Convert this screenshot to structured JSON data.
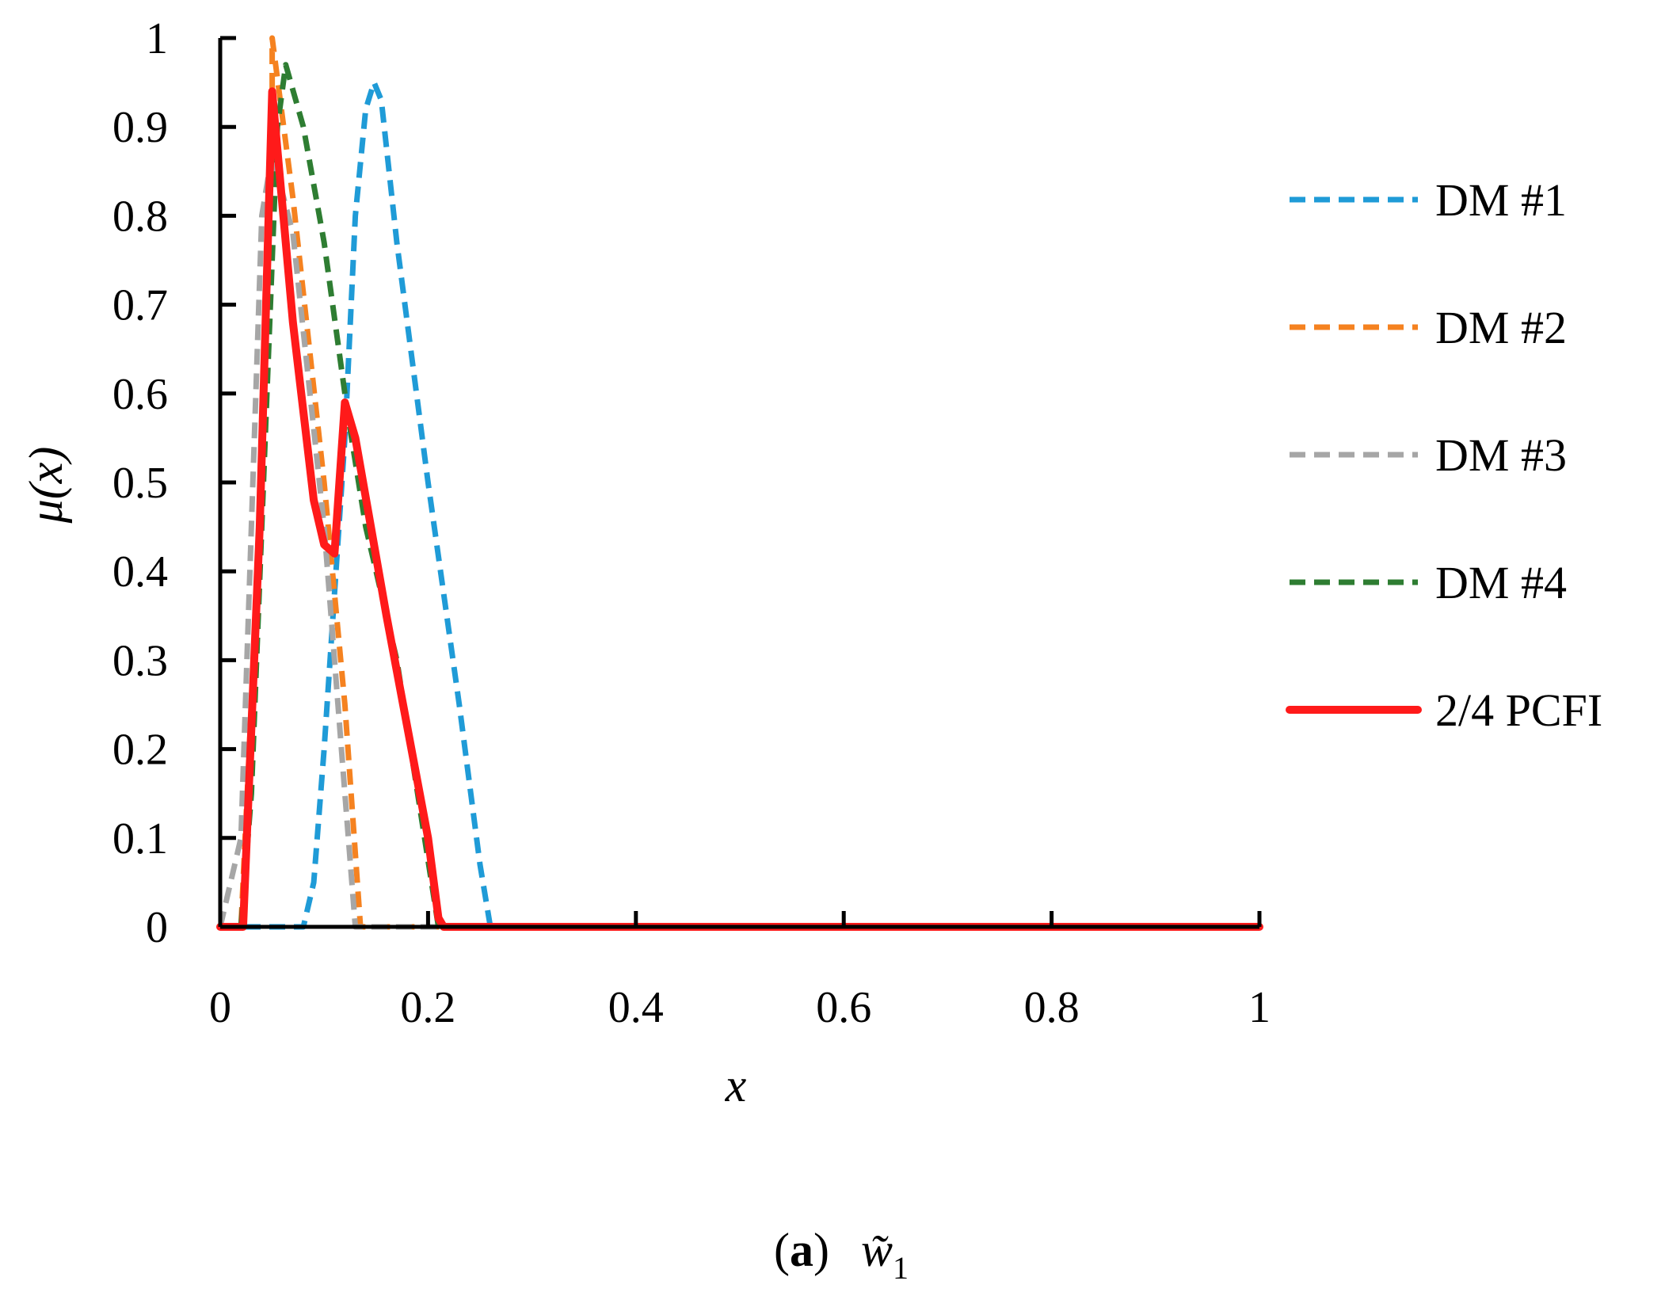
{
  "chart_data": {
    "type": "line",
    "xlabel": "x",
    "ylabel": "μ(x)",
    "xlim": [
      0,
      1
    ],
    "ylim": [
      0,
      1
    ],
    "x_ticks": [
      "0",
      "0.2",
      "0.4",
      "0.6",
      "0.8",
      "1"
    ],
    "y_ticks": [
      "0",
      "0.1",
      "0.2",
      "0.3",
      "0.4",
      "0.5",
      "0.6",
      "0.7",
      "0.8",
      "0.9",
      "1"
    ],
    "legend_position": "right",
    "series": [
      {
        "name": "DM #1",
        "color": "#1f9bd7",
        "style": "dashed",
        "points": [
          [
            0,
            0
          ],
          [
            0.08,
            0
          ],
          [
            0.09,
            0.05
          ],
          [
            0.1,
            0.2
          ],
          [
            0.12,
            0.55
          ],
          [
            0.13,
            0.8
          ],
          [
            0.14,
            0.92
          ],
          [
            0.148,
            0.95
          ],
          [
            0.155,
            0.93
          ],
          [
            0.17,
            0.77
          ],
          [
            0.2,
            0.5
          ],
          [
            0.23,
            0.25
          ],
          [
            0.25,
            0.07
          ],
          [
            0.26,
            0
          ],
          [
            1,
            0
          ]
        ]
      },
      {
        "name": "DM #2",
        "color": "#f58220",
        "style": "dashed",
        "points": [
          [
            0,
            0
          ],
          [
            0.02,
            0
          ],
          [
            0.04,
            0.5
          ],
          [
            0.05,
            0.9
          ],
          [
            0.05,
            1.0
          ],
          [
            0.07,
            0.82
          ],
          [
            0.1,
            0.5
          ],
          [
            0.12,
            0.25
          ],
          [
            0.135,
            0
          ],
          [
            1,
            0
          ]
        ]
      },
      {
        "name": "DM #3",
        "color": "#a6a6a6",
        "style": "dashed",
        "points": [
          [
            0,
            0
          ],
          [
            0.02,
            0.1
          ],
          [
            0.04,
            0.8
          ],
          [
            0.05,
            0.87
          ],
          [
            0.07,
            0.78
          ],
          [
            0.1,
            0.45
          ],
          [
            0.12,
            0.15
          ],
          [
            0.13,
            0
          ],
          [
            0.21,
            0
          ],
          [
            1,
            0
          ]
        ]
      },
      {
        "name": "DM #4",
        "color": "#2e7d32",
        "style": "dashed",
        "points": [
          [
            0,
            0
          ],
          [
            0.02,
            0
          ],
          [
            0.03,
            0.15
          ],
          [
            0.045,
            0.6
          ],
          [
            0.055,
            0.9
          ],
          [
            0.063,
            0.97
          ],
          [
            0.08,
            0.9
          ],
          [
            0.1,
            0.77
          ],
          [
            0.12,
            0.6
          ],
          [
            0.125,
            0.56
          ],
          [
            0.14,
            0.45
          ],
          [
            0.17,
            0.3
          ],
          [
            0.21,
            0
          ],
          [
            1,
            0
          ]
        ]
      },
      {
        "name": "2/4 PCFI",
        "color": "#ff1a1a",
        "style": "solid",
        "points": [
          [
            0,
            0
          ],
          [
            0.022,
            0
          ],
          [
            0.038,
            0.45
          ],
          [
            0.05,
            0.94
          ],
          [
            0.07,
            0.68
          ],
          [
            0.09,
            0.48
          ],
          [
            0.1,
            0.43
          ],
          [
            0.11,
            0.42
          ],
          [
            0.12,
            0.59
          ],
          [
            0.13,
            0.55
          ],
          [
            0.16,
            0.35
          ],
          [
            0.2,
            0.1
          ],
          [
            0.21,
            0.01
          ],
          [
            0.215,
            0
          ],
          [
            1,
            0
          ]
        ]
      }
    ]
  },
  "caption": {
    "label": "a",
    "open_paren": "(",
    "close_paren": ")",
    "symbol": "w̃",
    "subscript": "1"
  }
}
